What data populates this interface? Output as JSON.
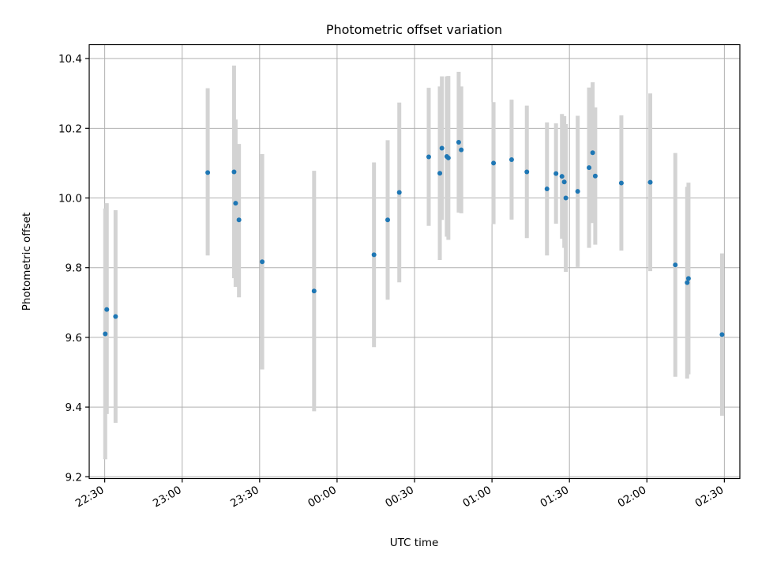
{
  "chart_data": {
    "type": "scatter",
    "title": "Photometric offset variation",
    "xlabel": "UTC time",
    "ylabel": "Photometric offset",
    "xlim": [
      "22:24",
      "02:36"
    ],
    "ylim": [
      9.195,
      10.44
    ],
    "grid": true,
    "x_ticks": [
      {
        "time": "22:30",
        "label": "22:30"
      },
      {
        "time": "23:00",
        "label": "23:00"
      },
      {
        "time": "23:30",
        "label": "23:30"
      },
      {
        "time": "00:00",
        "label": "00:00"
      },
      {
        "time": "00:30",
        "label": "00:30"
      },
      {
        "time": "01:00",
        "label": "01:00"
      },
      {
        "time": "01:30",
        "label": "01:30"
      },
      {
        "time": "02:00",
        "label": "02:00"
      },
      {
        "time": "02:30",
        "label": "02:30"
      }
    ],
    "y_ticks": [
      {
        "value": 9.2,
        "label": "9.2"
      },
      {
        "value": 9.4,
        "label": "9.4"
      },
      {
        "value": 9.6,
        "label": "9.6"
      },
      {
        "value": 9.8,
        "label": "9.8"
      },
      {
        "value": 10.0,
        "label": "10.0"
      },
      {
        "value": 10.2,
        "label": "10.2"
      },
      {
        "value": 10.4,
        "label": "10.4"
      }
    ],
    "point_color": "#1f77b4",
    "errorbar_color": "#d3d3d3",
    "points": [
      {
        "time": "22:30:12",
        "y": 9.61,
        "lo": 9.25,
        "hi": 9.97
      },
      {
        "time": "22:30:48",
        "y": 9.68,
        "lo": 9.38,
        "hi": 9.985
      },
      {
        "time": "22:34:12",
        "y": 9.66,
        "lo": 9.355,
        "hi": 9.965
      },
      {
        "time": "23:09:54",
        "y": 10.073,
        "lo": 9.835,
        "hi": 10.315
      },
      {
        "time": "23:20:06",
        "y": 10.075,
        "lo": 9.77,
        "hi": 10.38
      },
      {
        "time": "23:20:42",
        "y": 9.985,
        "lo": 9.745,
        "hi": 10.225
      },
      {
        "time": "23:22:00",
        "y": 9.937,
        "lo": 9.715,
        "hi": 10.155
      },
      {
        "time": "23:31:00",
        "y": 9.817,
        "lo": 9.508,
        "hi": 10.126
      },
      {
        "time": "23:51:06",
        "y": 9.733,
        "lo": 9.388,
        "hi": 10.078
      },
      {
        "time": "00:14:18",
        "y": 9.837,
        "lo": 9.572,
        "hi": 10.102
      },
      {
        "time": "00:19:36",
        "y": 9.937,
        "lo": 9.708,
        "hi": 10.166
      },
      {
        "time": "00:24:06",
        "y": 10.016,
        "lo": 9.758,
        "hi": 10.274
      },
      {
        "time": "00:35:30",
        "y": 10.118,
        "lo": 9.92,
        "hi": 10.316
      },
      {
        "time": "00:39:48",
        "y": 10.071,
        "lo": 9.822,
        "hi": 10.32
      },
      {
        "time": "00:40:36",
        "y": 10.143,
        "lo": 9.937,
        "hi": 10.349
      },
      {
        "time": "00:42:30",
        "y": 10.119,
        "lo": 9.889,
        "hi": 10.349
      },
      {
        "time": "00:43:06",
        "y": 10.115,
        "lo": 9.88,
        "hi": 10.35
      },
      {
        "time": "00:47:06",
        "y": 10.16,
        "lo": 9.958,
        "hi": 10.362
      },
      {
        "time": "00:48:06",
        "y": 10.138,
        "lo": 9.956,
        "hi": 10.32
      },
      {
        "time": "01:00:36",
        "y": 10.1,
        "lo": 9.925,
        "hi": 10.275
      },
      {
        "time": "01:07:36",
        "y": 10.11,
        "lo": 9.938,
        "hi": 10.282
      },
      {
        "time": "01:13:30",
        "y": 10.075,
        "lo": 9.885,
        "hi": 10.265
      },
      {
        "time": "01:21:18",
        "y": 10.026,
        "lo": 9.835,
        "hi": 10.217
      },
      {
        "time": "01:24:48",
        "y": 10.07,
        "lo": 9.926,
        "hi": 10.214
      },
      {
        "time": "01:27:06",
        "y": 10.062,
        "lo": 9.883,
        "hi": 10.241
      },
      {
        "time": "01:28:00",
        "y": 10.046,
        "lo": 9.857,
        "hi": 10.235
      },
      {
        "time": "01:28:36",
        "y": 10.0,
        "lo": 9.788,
        "hi": 10.212
      },
      {
        "time": "01:33:12",
        "y": 10.019,
        "lo": 9.802,
        "hi": 10.236
      },
      {
        "time": "01:37:36",
        "y": 10.087,
        "lo": 9.857,
        "hi": 10.317
      },
      {
        "time": "01:39:00",
        "y": 10.13,
        "lo": 9.928,
        "hi": 10.332
      },
      {
        "time": "01:40:00",
        "y": 10.063,
        "lo": 9.866,
        "hi": 10.26
      },
      {
        "time": "01:50:06",
        "y": 10.043,
        "lo": 9.849,
        "hi": 10.237
      },
      {
        "time": "02:01:18",
        "y": 10.045,
        "lo": 9.79,
        "hi": 10.3
      },
      {
        "time": "02:11:00",
        "y": 9.808,
        "lo": 9.487,
        "hi": 10.129
      },
      {
        "time": "02:15:36",
        "y": 9.757,
        "lo": 9.482,
        "hi": 10.032
      },
      {
        "time": "02:16:06",
        "y": 9.769,
        "lo": 9.494,
        "hi": 10.044
      },
      {
        "time": "02:29:06",
        "y": 9.608,
        "lo": 9.375,
        "hi": 9.841
      }
    ]
  }
}
